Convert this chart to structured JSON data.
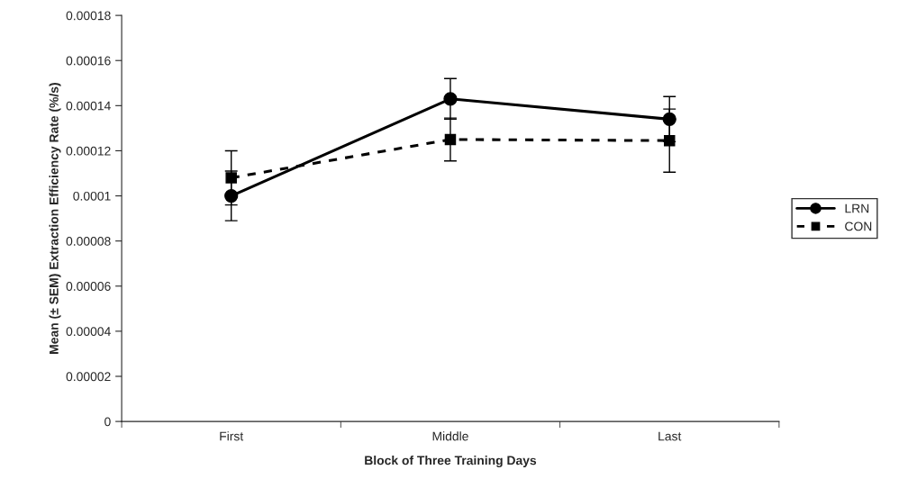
{
  "chart_data": {
    "type": "line",
    "xlabel": "Block of Three Training Days",
    "ylabel": "Mean (± SEM) Extraction Efficiency Rate (%/s)",
    "categories": [
      "First",
      "Middle",
      "Last"
    ],
    "series": [
      {
        "name": "LRN",
        "color": "#000000",
        "values": [
          0.0001,
          0.000143,
          0.000134
        ],
        "errors": [
          1.1e-05,
          9e-06,
          1e-05
        ],
        "marker": "circle",
        "line_style": "solid"
      },
      {
        "name": "CON",
        "color": "#000000",
        "values": [
          0.000108,
          0.000125,
          0.0001245
        ],
        "errors": [
          1.2e-05,
          9.5e-06,
          1.4e-05
        ],
        "marker": "square",
        "line_style": "dashed"
      }
    ],
    "ylim": [
      0,
      0.00018
    ],
    "yticks": [
      {
        "value": 0,
        "label": "0"
      },
      {
        "value": 2e-05,
        "label": "0.00002"
      },
      {
        "value": 4e-05,
        "label": "0.00004"
      },
      {
        "value": 6e-05,
        "label": "0.00006"
      },
      {
        "value": 8e-05,
        "label": "0.00008"
      },
      {
        "value": 0.0001,
        "label": "0.0001"
      },
      {
        "value": 0.00012,
        "label": "0.00012"
      },
      {
        "value": 0.00014,
        "label": "0.00014"
      },
      {
        "value": 0.00016,
        "label": "0.00016"
      },
      {
        "value": 0.00018,
        "label": "0.00018"
      }
    ],
    "grid": false,
    "legend": "right"
  }
}
